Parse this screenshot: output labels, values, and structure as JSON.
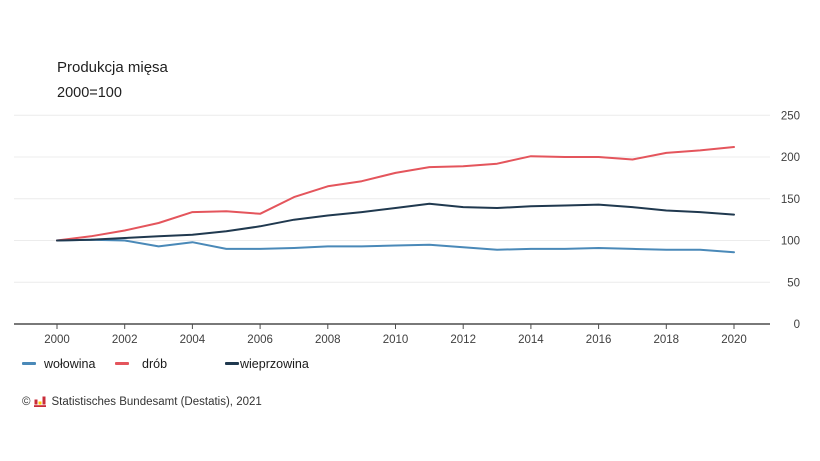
{
  "header": {
    "title": "Produkcja mięsa",
    "subtitle": "2000=100"
  },
  "chart_data": {
    "type": "line",
    "title": "Produkcja mięsa",
    "subtitle": "2000=100",
    "x": [
      2000,
      2001,
      2002,
      2003,
      2004,
      2005,
      2006,
      2007,
      2008,
      2009,
      2010,
      2011,
      2012,
      2013,
      2014,
      2015,
      2016,
      2017,
      2018,
      2019,
      2020
    ],
    "series": [
      {
        "name": "wołowina",
        "color": "#4a89b8",
        "values": [
          100,
          101,
          100,
          93,
          98,
          90,
          90,
          91,
          93,
          93,
          94,
          95,
          92,
          89,
          90,
          90,
          91,
          90,
          89,
          89,
          86
        ]
      },
      {
        "name": "drób",
        "color": "#e4555c",
        "values": [
          100,
          105,
          112,
          121,
          134,
          135,
          132,
          152,
          165,
          171,
          181,
          188,
          189,
          192,
          201,
          200,
          200,
          197,
          205,
          208,
          212
        ]
      },
      {
        "name": "wieprzowina",
        "color": "#20394f",
        "values": [
          100,
          101,
          103,
          105,
          107,
          111,
          117,
          125,
          130,
          134,
          139,
          144,
          140,
          139,
          141,
          142,
          143,
          140,
          136,
          134,
          131
        ]
      }
    ],
    "ylim": [
      0,
      250
    ],
    "yticks": [
      0,
      50,
      100,
      150,
      200,
      250
    ],
    "xticks": [
      2000,
      2002,
      2004,
      2006,
      2008,
      2010,
      2012,
      2014,
      2016,
      2018,
      2020
    ],
    "grid": true,
    "y_axis_side": "right",
    "legend_position": "bottom-left",
    "colors": {
      "grid": "#ececec",
      "axis": "#4d4d4d",
      "tick_label": "#404040"
    }
  },
  "footer": {
    "copyright": "©",
    "source": "Statistisches Bundesamt (Destatis), 2021",
    "logo": "destatis-bar-chart-icon",
    "logo_colors": {
      "red": "#c92d39",
      "yellow": "#ffcc00"
    }
  }
}
